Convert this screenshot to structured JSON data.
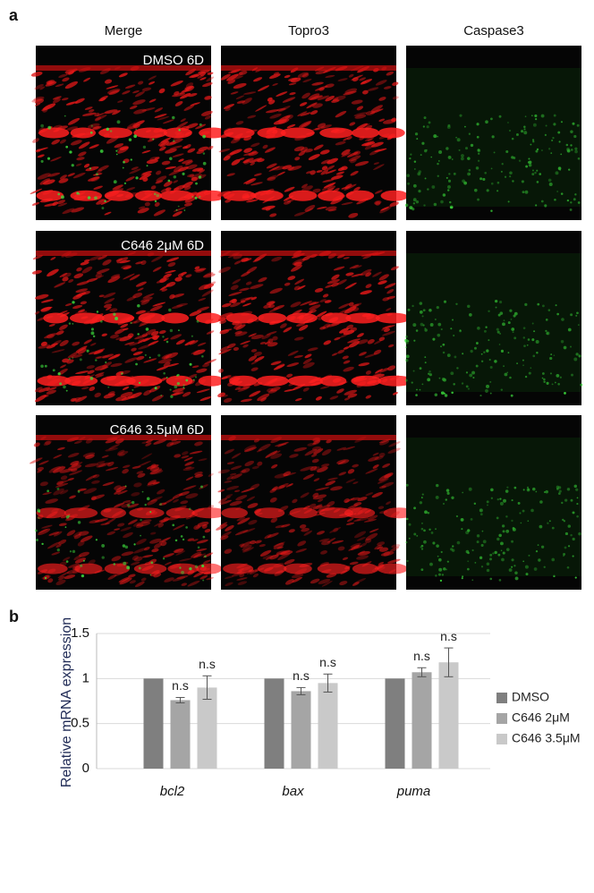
{
  "panel_a": {
    "label": "a",
    "columns": [
      "Merge",
      "Topro3",
      "Caspase3"
    ],
    "rows": [
      "DMSO 6D",
      "C646 2μM 6D",
      "C646 3.5μM 6D"
    ]
  },
  "chart_data": {
    "type": "bar",
    "panel_label": "b",
    "y_label": "Relative mRNA expression",
    "categories": [
      "bcl2",
      "bax",
      "puma"
    ],
    "series": [
      {
        "name": "DMSO",
        "color": "#7f7f7f",
        "values": [
          1,
          1,
          1
        ]
      },
      {
        "name": "C646 2μM",
        "color": "#a5a5a5",
        "values": [
          0.76,
          0.86,
          1.07
        ],
        "errors": [
          0.03,
          0.04,
          0.05
        ],
        "significance": [
          "n.s",
          "n.s",
          "n.s"
        ]
      },
      {
        "name": "C646 3.5μM",
        "color": "#c9c9c9",
        "values": [
          0.9,
          0.95,
          1.18
        ],
        "errors": [
          0.13,
          0.1,
          0.16
        ],
        "significance": [
          "n.s",
          "n.s",
          "n.s"
        ]
      }
    ],
    "ylim": [
      0,
      1.5
    ],
    "yticks": [
      0,
      0.5,
      1,
      1.5
    ],
    "grid": true
  }
}
